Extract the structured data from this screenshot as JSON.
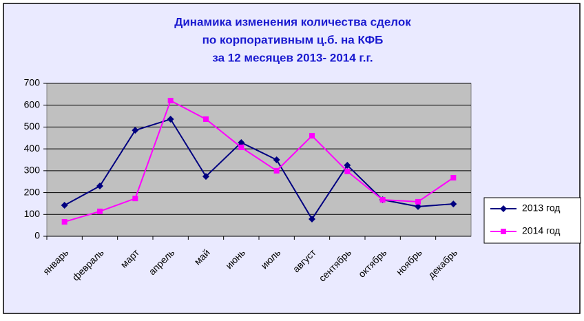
{
  "chart_data": {
    "type": "line",
    "title": [
      "Динамика изменения количества сделок",
      "по корпоративным ц.б. на КФБ",
      "за 12 месяцев 2013- 2014 г.г."
    ],
    "categories": [
      "январь",
      "февраль",
      "март",
      "апрель",
      "май",
      "июнь",
      "июль",
      "август",
      "сентябрь",
      "октябрь",
      "ноябрь",
      "декабрь"
    ],
    "series": [
      {
        "name": "2013 год",
        "color": "#000080",
        "marker": "diamond",
        "values": [
          142,
          230,
          485,
          536,
          274,
          429,
          350,
          79,
          325,
          167,
          136,
          148
        ]
      },
      {
        "name": "2014 год",
        "color": "#ff00ff",
        "marker": "square",
        "values": [
          66,
          114,
          173,
          621,
          536,
          407,
          300,
          460,
          297,
          167,
          158,
          268
        ]
      }
    ],
    "ylim": [
      0,
      700
    ],
    "yticks": [
      0,
      100,
      200,
      300,
      400,
      500,
      600,
      700
    ],
    "grid": true,
    "legend": "right"
  }
}
